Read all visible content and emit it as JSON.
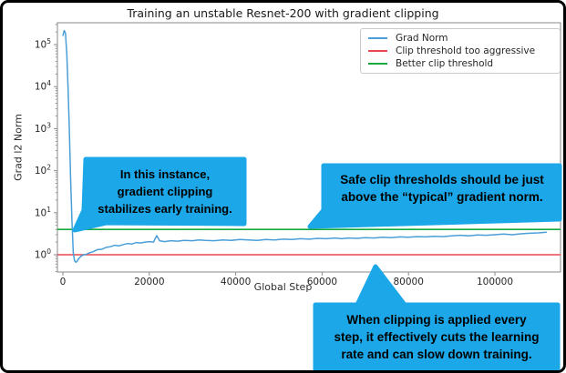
{
  "figure": {
    "title": "Training an unstable Resnet-200 with gradient clipping",
    "xlabel": "Global Step",
    "ylabel": "Grad l2 Norm"
  },
  "colors": {
    "bubble": "#1ba7e8",
    "grad_norm": "#4a9fd8",
    "clip_aggressive": "#e8484e",
    "better_clip": "#16a93f",
    "spine": "#8a8a8a",
    "tick_text": "#262626",
    "frame_border": "#000000"
  },
  "legend": {
    "entries": [
      {
        "label": "Grad Norm",
        "color": "#4a9fd8"
      },
      {
        "label": "Clip threshold too aggressive",
        "color": "#e8484e"
      },
      {
        "label": "Better clip threshold",
        "color": "#16a93f"
      }
    ]
  },
  "annotations": {
    "bubble1": "In this instance,\ngradient clipping\nstabilizes early training.",
    "bubble2": "Safe clip thresholds should be just\nabove the “typical” gradient norm.",
    "bubble3": "When clipping is applied every\nstep, it effectively cuts the learning\nrate and can slow down training."
  },
  "chart_data": {
    "type": "line",
    "title": "Training an unstable Resnet-200 with gradient clipping",
    "xlabel": "Global Step",
    "ylabel": "Grad l2 Norm",
    "xscale": "linear",
    "yscale": "log",
    "grid": false,
    "legend_position": "upper right",
    "xlim": [
      -6000,
      116000
    ],
    "ylim": [
      0.4,
      330000
    ],
    "x_ticks": [
      0,
      20000,
      40000,
      60000,
      80000,
      100000
    ],
    "x_tick_labels": [
      "0",
      "20000",
      "40000",
      "60000",
      "80000",
      "100000"
    ],
    "y_tick_exponents": [
      0,
      1,
      2,
      3,
      4,
      5
    ],
    "thresholds": [
      {
        "name": "clip-threshold-too-aggressive",
        "label": "Clip threshold too aggressive",
        "value": 1.0,
        "color": "#e8484e"
      },
      {
        "name": "better-clip-threshold",
        "label": "Better clip threshold",
        "value": 4.0,
        "color": "#16a93f"
      }
    ],
    "series": [
      {
        "name": "Grad Norm",
        "color": "#4a9fd8",
        "points": [
          [
            0,
            160000
          ],
          [
            300,
            215000
          ],
          [
            600,
            190000
          ],
          [
            900,
            60000
          ],
          [
            1200,
            9000
          ],
          [
            1500,
            900
          ],
          [
            1800,
            60
          ],
          [
            2100,
            6
          ],
          [
            2400,
            1.1
          ],
          [
            2700,
            0.72
          ],
          [
            3000,
            0.66
          ],
          [
            3300,
            0.7
          ],
          [
            3600,
            0.8
          ],
          [
            4200,
            0.92
          ],
          [
            4800,
            1.0
          ],
          [
            5400,
            1.02
          ],
          [
            6000,
            1.1
          ],
          [
            7000,
            1.18
          ],
          [
            8000,
            1.32
          ],
          [
            9000,
            1.35
          ],
          [
            10000,
            1.5
          ],
          [
            11000,
            1.55
          ],
          [
            12000,
            1.68
          ],
          [
            13000,
            1.62
          ],
          [
            14000,
            1.75
          ],
          [
            15000,
            1.85
          ],
          [
            16000,
            1.8
          ],
          [
            17000,
            1.95
          ],
          [
            18000,
            1.9
          ],
          [
            19000,
            2.0
          ],
          [
            20000,
            2.05
          ],
          [
            21000,
            2.0
          ],
          [
            21700,
            2.85
          ],
          [
            22400,
            2.15
          ],
          [
            23500,
            2.05
          ],
          [
            25000,
            2.15
          ],
          [
            26500,
            2.1
          ],
          [
            28000,
            2.2
          ],
          [
            30000,
            2.15
          ],
          [
            31500,
            2.25
          ],
          [
            33000,
            2.2
          ],
          [
            35000,
            2.15
          ],
          [
            37000,
            2.25
          ],
          [
            39000,
            2.2
          ],
          [
            41000,
            2.3
          ],
          [
            43000,
            2.25
          ],
          [
            45000,
            2.2
          ],
          [
            47000,
            2.3
          ],
          [
            49000,
            2.25
          ],
          [
            51000,
            2.35
          ],
          [
            53000,
            2.3
          ],
          [
            55000,
            2.4
          ],
          [
            57000,
            2.35
          ],
          [
            59000,
            2.45
          ],
          [
            61000,
            2.4
          ],
          [
            63000,
            2.5
          ],
          [
            64500,
            2.4
          ],
          [
            66000,
            2.5
          ],
          [
            68000,
            2.45
          ],
          [
            70000,
            2.55
          ],
          [
            72000,
            2.5
          ],
          [
            74000,
            2.6
          ],
          [
            76000,
            2.55
          ],
          [
            78000,
            2.65
          ],
          [
            80000,
            2.6
          ],
          [
            82000,
            2.7
          ],
          [
            84000,
            2.65
          ],
          [
            86000,
            2.75
          ],
          [
            88000,
            2.7
          ],
          [
            90000,
            2.8
          ],
          [
            92000,
            2.9
          ],
          [
            94000,
            2.8
          ],
          [
            96000,
            2.95
          ],
          [
            98000,
            2.9
          ],
          [
            100000,
            3.0
          ],
          [
            102000,
            3.1
          ],
          [
            104000,
            3.0
          ],
          [
            106000,
            3.15
          ],
          [
            108000,
            3.25
          ],
          [
            110000,
            3.3
          ],
          [
            112000,
            3.45
          ]
        ]
      }
    ]
  }
}
